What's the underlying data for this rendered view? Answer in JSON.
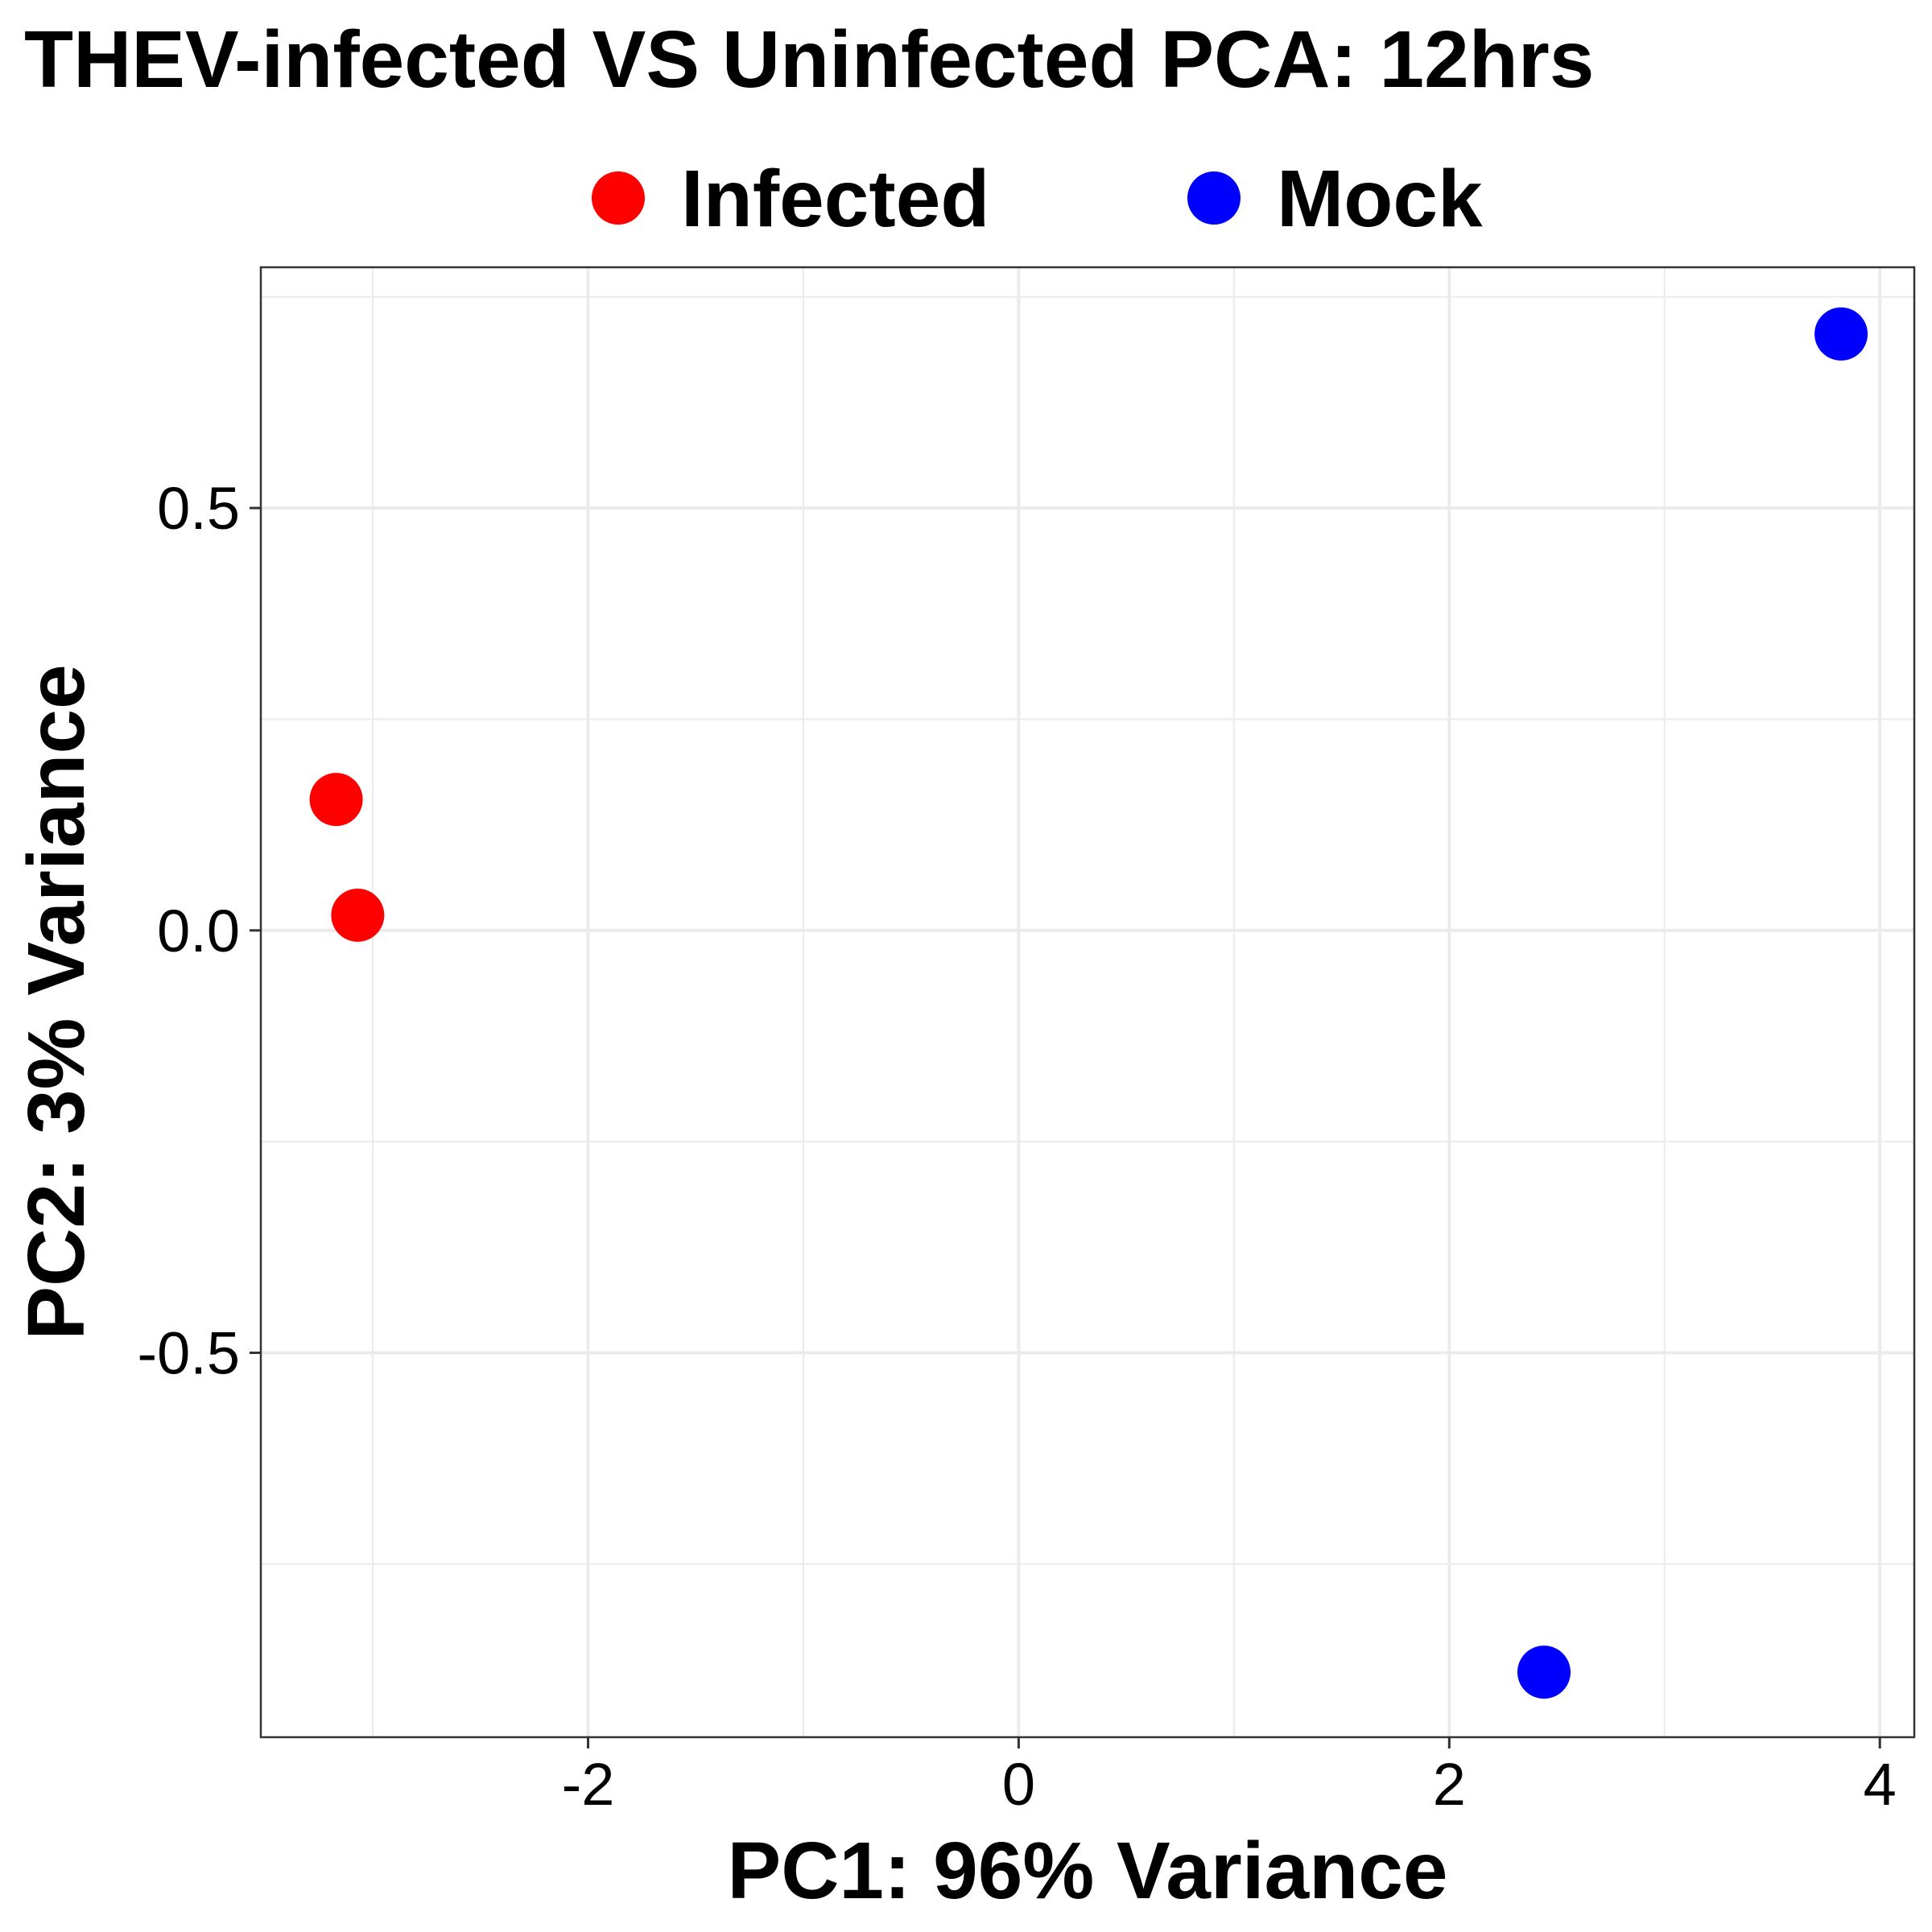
{
  "chart_data": {
    "type": "scatter",
    "title": "THEV-infected VS Uninfected PCA: 12hrs",
    "xlabel": "PC1: 96% Variance",
    "ylabel": "PC2: 3% Variance",
    "xlim": [
      -3.52,
      4.16
    ],
    "ylim": [
      -0.955,
      0.785
    ],
    "x_ticks": [
      -2,
      0,
      2,
      4
    ],
    "x_tick_labels": [
      "-2",
      "0",
      "2",
      "4"
    ],
    "y_ticks": [
      -0.5,
      0.0,
      0.5
    ],
    "y_tick_labels": [
      "-0.5",
      "0.0",
      "0.5"
    ],
    "grid": true,
    "legend_position": "top",
    "series": [
      {
        "name": "Infected",
        "color": "#ff0000",
        "points": [
          {
            "x": -3.17,
            "y": 0.155
          },
          {
            "x": -3.07,
            "y": 0.018
          }
        ]
      },
      {
        "name": "Mock",
        "color": "#0000ff",
        "points": [
          {
            "x": 2.44,
            "y": -0.878
          },
          {
            "x": 3.82,
            "y": 0.706
          }
        ]
      }
    ]
  }
}
